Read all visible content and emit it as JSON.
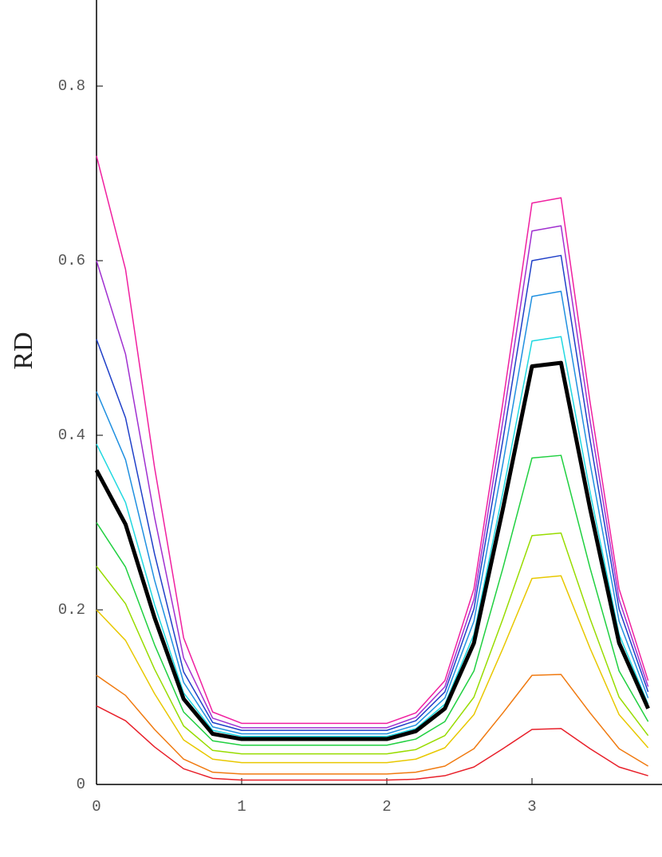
{
  "chart_data": {
    "type": "line",
    "y_label": "RD",
    "x": [
      0,
      0.2,
      0.4,
      0.6,
      0.8,
      1.0,
      1.2,
      1.4,
      1.6,
      1.8,
      2.0,
      2.2,
      2.4,
      2.6,
      2.8,
      3.0,
      3.2,
      3.4,
      3.6,
      3.8
    ],
    "xlim": [
      0,
      3.9
    ],
    "ylim": [
      0,
      0.9
    ],
    "xticks": [
      0,
      1,
      2,
      3
    ],
    "yticks": [
      0,
      0.2,
      0.4,
      0.6,
      0.8
    ],
    "series": [
      {
        "color": "#e8202a",
        "line_width": 1.5,
        "values": [
          0.09,
          0.073,
          0.043,
          0.018,
          0.007,
          0.005,
          0.005,
          0.005,
          0.005,
          0.005,
          0.005,
          0.006,
          0.01,
          0.02,
          0.041,
          0.063,
          0.064,
          0.041,
          0.02,
          0.01
        ]
      },
      {
        "color": "#f07a10",
        "line_width": 1.5,
        "values": [
          0.125,
          0.102,
          0.063,
          0.029,
          0.014,
          0.012,
          0.012,
          0.012,
          0.012,
          0.012,
          0.012,
          0.014,
          0.021,
          0.041,
          0.082,
          0.125,
          0.126,
          0.082,
          0.041,
          0.021
        ]
      },
      {
        "color": "#e8c800",
        "line_width": 1.5,
        "values": [
          0.2,
          0.165,
          0.104,
          0.051,
          0.029,
          0.025,
          0.025,
          0.025,
          0.025,
          0.025,
          0.025,
          0.029,
          0.042,
          0.08,
          0.156,
          0.236,
          0.239,
          0.156,
          0.08,
          0.042
        ]
      },
      {
        "color": "#98dc00",
        "line_width": 1.5,
        "values": [
          0.25,
          0.207,
          0.132,
          0.067,
          0.039,
          0.035,
          0.035,
          0.035,
          0.035,
          0.035,
          0.035,
          0.04,
          0.056,
          0.1,
          0.19,
          0.285,
          0.288,
          0.19,
          0.1,
          0.056
        ]
      },
      {
        "color": "#20d040",
        "line_width": 1.5,
        "values": [
          0.3,
          0.249,
          0.16,
          0.083,
          0.05,
          0.045,
          0.045,
          0.045,
          0.045,
          0.045,
          0.045,
          0.052,
          0.072,
          0.13,
          0.248,
          0.374,
          0.377,
          0.248,
          0.13,
          0.072
        ]
      },
      {
        "color": "#20d8e0",
        "line_width": 1.5,
        "values": [
          0.39,
          0.323,
          0.206,
          0.105,
          0.062,
          0.055,
          0.055,
          0.055,
          0.055,
          0.055,
          0.055,
          0.064,
          0.092,
          0.172,
          0.335,
          0.508,
          0.513,
          0.335,
          0.172,
          0.092
        ]
      },
      {
        "color": "#2090e0",
        "line_width": 1.5,
        "values": [
          0.45,
          0.372,
          0.234,
          0.117,
          0.066,
          0.058,
          0.058,
          0.058,
          0.058,
          0.058,
          0.058,
          0.068,
          0.099,
          0.187,
          0.368,
          0.559,
          0.565,
          0.368,
          0.187,
          0.099
        ]
      },
      {
        "color": "#2040c8",
        "line_width": 1.5,
        "values": [
          0.51,
          0.42,
          0.264,
          0.129,
          0.071,
          0.062,
          0.062,
          0.062,
          0.062,
          0.062,
          0.062,
          0.073,
          0.106,
          0.201,
          0.395,
          0.6,
          0.606,
          0.395,
          0.201,
          0.106
        ]
      },
      {
        "color": "#a030d0",
        "line_width": 1.5,
        "values": [
          0.6,
          0.493,
          0.306,
          0.145,
          0.076,
          0.065,
          0.065,
          0.065,
          0.065,
          0.065,
          0.065,
          0.077,
          0.112,
          0.212,
          0.417,
          0.634,
          0.64,
          0.417,
          0.212,
          0.112
        ]
      },
      {
        "color": "#f020a0",
        "line_width": 1.5,
        "values": [
          0.72,
          0.59,
          0.363,
          0.168,
          0.083,
          0.07,
          0.07,
          0.07,
          0.07,
          0.07,
          0.07,
          0.082,
          0.119,
          0.224,
          0.438,
          0.666,
          0.672,
          0.438,
          0.224,
          0.119
        ]
      },
      {
        "color": "#000000",
        "line_width": 5,
        "values": [
          0.36,
          0.298,
          0.191,
          0.098,
          0.058,
          0.052,
          0.052,
          0.052,
          0.052,
          0.052,
          0.052,
          0.061,
          0.087,
          0.162,
          0.316,
          0.479,
          0.483,
          0.316,
          0.162,
          0.087
        ]
      }
    ]
  }
}
